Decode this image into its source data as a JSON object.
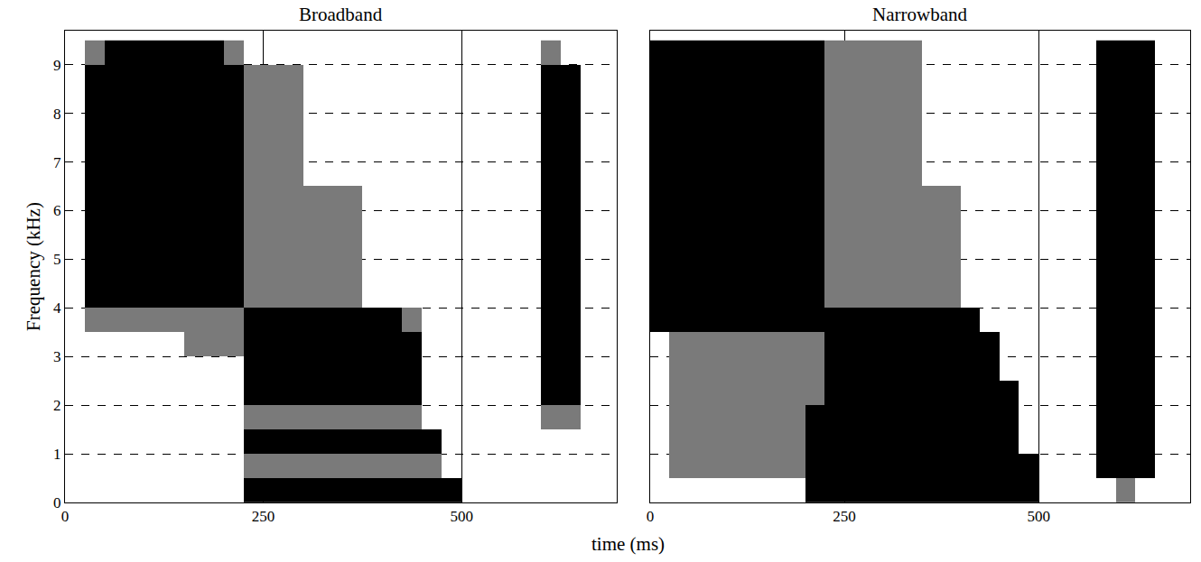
{
  "chart_data": {
    "type": "heatmap",
    "xlabel": "time (ms)",
    "xlim": [
      0,
      695
    ],
    "xticks": [
      0,
      250,
      500
    ],
    "ylim": [
      0,
      9.7
    ],
    "yticks": [
      0,
      1,
      2,
      3,
      4,
      5,
      6,
      7,
      8,
      9
    ],
    "grid": true,
    "colors": [
      "rgba(0,0,0,0)",
      "#7a7a7a",
      "#000000"
    ],
    "x": [
      12.5,
      37.5,
      62.5,
      87.5,
      112.5,
      137.5,
      162.5,
      187.5,
      212.5,
      237.5,
      262.5,
      287.5,
      312.5,
      337.5,
      362.5,
      387.5,
      412.5,
      437.5,
      462.5,
      487.5,
      512.5,
      537.5,
      562.5,
      587.5,
      612.5,
      637.5,
      662.5,
      687.5
    ],
    "y": [
      0.25,
      0.75,
      1.25,
      1.75,
      2.25,
      2.75,
      3.25,
      3.75,
      4.25,
      4.75,
      5.25,
      5.75,
      6.25,
      6.75,
      7.25,
      7.75,
      8.25,
      8.75,
      9.25
    ],
    "panels": [
      {
        "title": "Broadband",
        "ylabel": "Frequency (kHz)",
        "z": [
          [
            0,
            0,
            0,
            0,
            0,
            0,
            0,
            0,
            0,
            2,
            2,
            2,
            2,
            2,
            2,
            2,
            2,
            2,
            2,
            2,
            0,
            0,
            0,
            0,
            0,
            0,
            0,
            0
          ],
          [
            0,
            0,
            0,
            0,
            0,
            0,
            0,
            0,
            0,
            1,
            1,
            1,
            1,
            1,
            1,
            1,
            1,
            1,
            1,
            0,
            0,
            0,
            0,
            0,
            0,
            0,
            0,
            0
          ],
          [
            0,
            0,
            0,
            0,
            0,
            0,
            0,
            0,
            0,
            2,
            2,
            2,
            2,
            2,
            2,
            2,
            2,
            2,
            2,
            0,
            0,
            0,
            0,
            0,
            0,
            0,
            0,
            0
          ],
          [
            0,
            0,
            0,
            0,
            0,
            0,
            0,
            0,
            0,
            1,
            1,
            1,
            1,
            1,
            1,
            1,
            1,
            1,
            0,
            0,
            0,
            0,
            0,
            0,
            1,
            1,
            0,
            0
          ],
          [
            0,
            0,
            0,
            0,
            0,
            0,
            0,
            0,
            0,
            2,
            2,
            2,
            2,
            2,
            2,
            2,
            2,
            2,
            0,
            0,
            0,
            0,
            0,
            0,
            2,
            2,
            0,
            0
          ],
          [
            0,
            0,
            0,
            0,
            0,
            0,
            0,
            0,
            0,
            2,
            2,
            2,
            2,
            2,
            2,
            2,
            2,
            2,
            0,
            0,
            0,
            0,
            0,
            0,
            2,
            2,
            0,
            0
          ],
          [
            0,
            0,
            0,
            0,
            0,
            0,
            1,
            1,
            1,
            2,
            2,
            2,
            2,
            2,
            2,
            2,
            2,
            2,
            0,
            0,
            0,
            0,
            0,
            0,
            2,
            2,
            0,
            0
          ],
          [
            0,
            1,
            1,
            1,
            1,
            1,
            1,
            1,
            1,
            2,
            2,
            2,
            2,
            2,
            2,
            2,
            2,
            1,
            0,
            0,
            0,
            0,
            0,
            0,
            2,
            2,
            0,
            0
          ],
          [
            0,
            2,
            2,
            2,
            2,
            2,
            2,
            2,
            2,
            1,
            1,
            1,
            1,
            1,
            1,
            0,
            0,
            0,
            0,
            0,
            0,
            0,
            0,
            0,
            2,
            2,
            0,
            0
          ],
          [
            0,
            2,
            2,
            2,
            2,
            2,
            2,
            2,
            2,
            1,
            1,
            1,
            1,
            1,
            1,
            0,
            0,
            0,
            0,
            0,
            0,
            0,
            0,
            0,
            2,
            2,
            0,
            0
          ],
          [
            0,
            2,
            2,
            2,
            2,
            2,
            2,
            2,
            2,
            1,
            1,
            1,
            1,
            1,
            1,
            0,
            0,
            0,
            0,
            0,
            0,
            0,
            0,
            0,
            2,
            2,
            0,
            0
          ],
          [
            0,
            2,
            2,
            2,
            2,
            2,
            2,
            2,
            2,
            1,
            1,
            1,
            1,
            1,
            1,
            0,
            0,
            0,
            0,
            0,
            0,
            0,
            0,
            0,
            2,
            2,
            0,
            0
          ],
          [
            0,
            2,
            2,
            2,
            2,
            2,
            2,
            2,
            2,
            1,
            1,
            1,
            1,
            1,
            1,
            0,
            0,
            0,
            0,
            0,
            0,
            0,
            0,
            0,
            2,
            2,
            0,
            0
          ],
          [
            0,
            2,
            2,
            2,
            2,
            2,
            2,
            2,
            2,
            1,
            1,
            1,
            0,
            0,
            0,
            0,
            0,
            0,
            0,
            0,
            0,
            0,
            0,
            0,
            2,
            2,
            0,
            0
          ],
          [
            0,
            2,
            2,
            2,
            2,
            2,
            2,
            2,
            2,
            1,
            1,
            1,
            0,
            0,
            0,
            0,
            0,
            0,
            0,
            0,
            0,
            0,
            0,
            0,
            2,
            2,
            0,
            0
          ],
          [
            0,
            2,
            2,
            2,
            2,
            2,
            2,
            2,
            2,
            1,
            1,
            1,
            0,
            0,
            0,
            0,
            0,
            0,
            0,
            0,
            0,
            0,
            0,
            0,
            2,
            2,
            0,
            0
          ],
          [
            0,
            2,
            2,
            2,
            2,
            2,
            2,
            2,
            2,
            1,
            1,
            1,
            0,
            0,
            0,
            0,
            0,
            0,
            0,
            0,
            0,
            0,
            0,
            0,
            2,
            2,
            0,
            0
          ],
          [
            0,
            2,
            2,
            2,
            2,
            2,
            2,
            2,
            2,
            1,
            1,
            1,
            0,
            0,
            0,
            0,
            0,
            0,
            0,
            0,
            0,
            0,
            0,
            0,
            2,
            2,
            0,
            0
          ],
          [
            0,
            1,
            2,
            2,
            2,
            2,
            2,
            2,
            1,
            0,
            0,
            0,
            0,
            0,
            0,
            0,
            0,
            0,
            0,
            0,
            0,
            0,
            0,
            0,
            1,
            0,
            0,
            0
          ]
        ]
      },
      {
        "title": "Narrowband",
        "tick_labels": "x",
        "z": [
          [
            0,
            0,
            0,
            0,
            0,
            0,
            0,
            0,
            2,
            2,
            2,
            2,
            2,
            2,
            2,
            2,
            2,
            2,
            2,
            2,
            0,
            0,
            0,
            0,
            1,
            0,
            0,
            0
          ],
          [
            0,
            1,
            1,
            1,
            1,
            1,
            1,
            1,
            2,
            2,
            2,
            2,
            2,
            2,
            2,
            2,
            2,
            2,
            2,
            2,
            0,
            0,
            0,
            2,
            2,
            2,
            0,
            0
          ],
          [
            0,
            1,
            1,
            1,
            1,
            1,
            1,
            1,
            2,
            2,
            2,
            2,
            2,
            2,
            2,
            2,
            2,
            2,
            2,
            0,
            0,
            0,
            0,
            2,
            2,
            2,
            0,
            0
          ],
          [
            0,
            1,
            1,
            1,
            1,
            1,
            1,
            1,
            2,
            2,
            2,
            2,
            2,
            2,
            2,
            2,
            2,
            2,
            2,
            0,
            0,
            0,
            0,
            2,
            2,
            2,
            0,
            0
          ],
          [
            0,
            1,
            1,
            1,
            1,
            1,
            1,
            1,
            1,
            2,
            2,
            2,
            2,
            2,
            2,
            2,
            2,
            2,
            2,
            0,
            0,
            0,
            0,
            2,
            2,
            2,
            0,
            0
          ],
          [
            0,
            1,
            1,
            1,
            1,
            1,
            1,
            1,
            1,
            2,
            2,
            2,
            2,
            2,
            2,
            2,
            2,
            2,
            0,
            0,
            0,
            0,
            0,
            2,
            2,
            2,
            0,
            0
          ],
          [
            0,
            1,
            1,
            1,
            1,
            1,
            1,
            1,
            1,
            2,
            2,
            2,
            2,
            2,
            2,
            2,
            2,
            2,
            0,
            0,
            0,
            0,
            0,
            2,
            2,
            2,
            0,
            0
          ],
          [
            2,
            2,
            2,
            2,
            2,
            2,
            2,
            2,
            2,
            2,
            2,
            2,
            2,
            2,
            2,
            2,
            2,
            0,
            0,
            0,
            0,
            0,
            0,
            2,
            2,
            2,
            0,
            0
          ],
          [
            2,
            2,
            2,
            2,
            2,
            2,
            2,
            2,
            2,
            1,
            1,
            1,
            1,
            1,
            1,
            1,
            0,
            0,
            0,
            0,
            0,
            0,
            0,
            2,
            2,
            2,
            0,
            0
          ],
          [
            2,
            2,
            2,
            2,
            2,
            2,
            2,
            2,
            2,
            1,
            1,
            1,
            1,
            1,
            1,
            1,
            0,
            0,
            0,
            0,
            0,
            0,
            0,
            2,
            2,
            2,
            0,
            0
          ],
          [
            2,
            2,
            2,
            2,
            2,
            2,
            2,
            2,
            2,
            1,
            1,
            1,
            1,
            1,
            1,
            1,
            0,
            0,
            0,
            0,
            0,
            0,
            0,
            2,
            2,
            2,
            0,
            0
          ],
          [
            2,
            2,
            2,
            2,
            2,
            2,
            2,
            2,
            2,
            1,
            1,
            1,
            1,
            1,
            1,
            1,
            0,
            0,
            0,
            0,
            0,
            0,
            0,
            2,
            2,
            2,
            0,
            0
          ],
          [
            2,
            2,
            2,
            2,
            2,
            2,
            2,
            2,
            2,
            1,
            1,
            1,
            1,
            1,
            1,
            1,
            0,
            0,
            0,
            0,
            0,
            0,
            0,
            2,
            2,
            2,
            0,
            0
          ],
          [
            2,
            2,
            2,
            2,
            2,
            2,
            2,
            2,
            2,
            1,
            1,
            1,
            1,
            1,
            0,
            0,
            0,
            0,
            0,
            0,
            0,
            0,
            0,
            2,
            2,
            2,
            0,
            0
          ],
          [
            2,
            2,
            2,
            2,
            2,
            2,
            2,
            2,
            2,
            1,
            1,
            1,
            1,
            1,
            0,
            0,
            0,
            0,
            0,
            0,
            0,
            0,
            0,
            2,
            2,
            2,
            0,
            0
          ],
          [
            2,
            2,
            2,
            2,
            2,
            2,
            2,
            2,
            2,
            1,
            1,
            1,
            1,
            1,
            0,
            0,
            0,
            0,
            0,
            0,
            0,
            0,
            0,
            2,
            2,
            2,
            0,
            0
          ],
          [
            2,
            2,
            2,
            2,
            2,
            2,
            2,
            2,
            2,
            1,
            1,
            1,
            1,
            1,
            0,
            0,
            0,
            0,
            0,
            0,
            0,
            0,
            0,
            2,
            2,
            2,
            0,
            0
          ],
          [
            2,
            2,
            2,
            2,
            2,
            2,
            2,
            2,
            2,
            1,
            1,
            1,
            1,
            1,
            0,
            0,
            0,
            0,
            0,
            0,
            0,
            0,
            0,
            2,
            2,
            2,
            0,
            0
          ],
          [
            2,
            2,
            2,
            2,
            2,
            2,
            2,
            2,
            2,
            1,
            1,
            1,
            1,
            1,
            0,
            0,
            0,
            0,
            0,
            0,
            0,
            0,
            0,
            2,
            2,
            2,
            0,
            0
          ]
        ]
      }
    ]
  }
}
